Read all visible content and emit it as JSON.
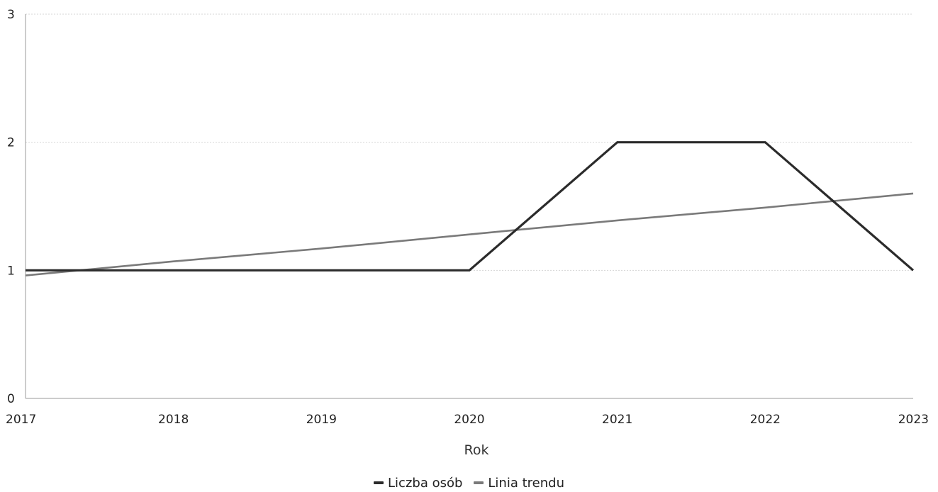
{
  "chart_data": {
    "type": "line",
    "x": [
      2017,
      2018,
      2019,
      2020,
      2021,
      2022,
      2023
    ],
    "xlabel": "Rok",
    "ylabel": "",
    "ylim": [
      0,
      3
    ],
    "yticks": [
      0,
      1,
      2,
      3
    ],
    "grid": true,
    "legend_position": "bottom",
    "series": [
      {
        "name": "Liczba osób",
        "color": "#2b2b2b",
        "values": [
          1,
          1,
          1,
          1,
          2,
          2,
          1
        ]
      },
      {
        "name": "Linia trendu",
        "color": "#7a7a7a",
        "values": [
          0.96,
          1.07,
          1.17,
          1.28,
          1.39,
          1.49,
          1.6
        ]
      }
    ]
  }
}
